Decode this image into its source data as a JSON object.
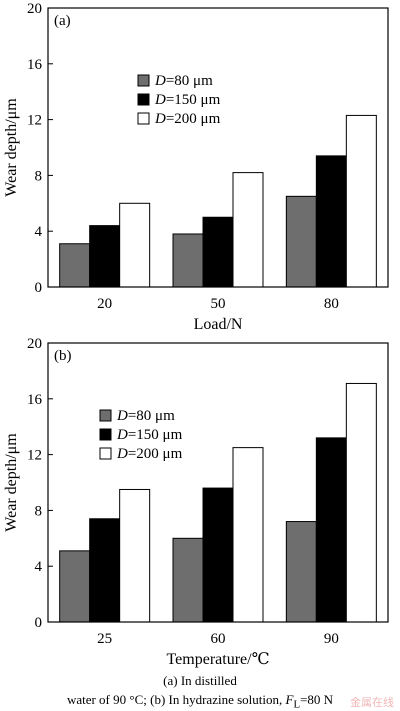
{
  "chart_data": [
    {
      "type": "bar",
      "panel_label": "(a)",
      "categories": [
        "20",
        "50",
        "80"
      ],
      "series": [
        {
          "name": "D=80  μm",
          "name_italic": "D",
          "name_rest": "=80  μm",
          "color": "#6e6e6e",
          "values": [
            3.1,
            3.8,
            6.5
          ]
        },
        {
          "name": "D=150  μm",
          "name_italic": "D",
          "name_rest": "=150  μm",
          "color": "#000000",
          "values": [
            4.4,
            5.0,
            9.4
          ]
        },
        {
          "name": "D=200  μm",
          "name_italic": "D",
          "name_rest": "=200  μm",
          "color": "#ffffff",
          "values": [
            6.0,
            8.2,
            12.3
          ]
        }
      ],
      "xlabel": "Load/N",
      "ylabel": "Wear depth/μm",
      "ylim": [
        0,
        20
      ],
      "yticks": [
        "0",
        "4",
        "8",
        "12",
        "16",
        "20"
      ],
      "legend_position": "upper-left",
      "grid": false
    },
    {
      "type": "bar",
      "panel_label": "(b)",
      "categories": [
        "25",
        "60",
        "90"
      ],
      "series": [
        {
          "name": "D=80  μm",
          "name_italic": "D",
          "name_rest": "=80  μm",
          "color": "#6e6e6e",
          "values": [
            5.1,
            6.0,
            7.2
          ]
        },
        {
          "name": "D=150  μm",
          "name_italic": "D",
          "name_rest": "=150  μm",
          "color": "#000000",
          "values": [
            7.4,
            9.6,
            13.2
          ]
        },
        {
          "name": "D=200  μm",
          "name_italic": "D",
          "name_rest": "=200  μm",
          "color": "#ffffff",
          "values": [
            9.5,
            12.5,
            17.1
          ]
        }
      ],
      "xlabel": "Temperature/℃",
      "ylabel": "Wear depth/μm",
      "ylim": [
        0,
        20
      ],
      "yticks": [
        "0",
        "4",
        "8",
        "12",
        "16",
        "20"
      ],
      "legend_position": "upper-left",
      "grid": false
    }
  ],
  "caption": {
    "line1": "(a)  In  distilled",
    "line2_pre": "water of 90 °C; (b) In hydrazine solution, ",
    "line2_var": "F",
    "line2_sub": "L",
    "line2_post": "=80 N"
  },
  "watermark": "金属在线"
}
